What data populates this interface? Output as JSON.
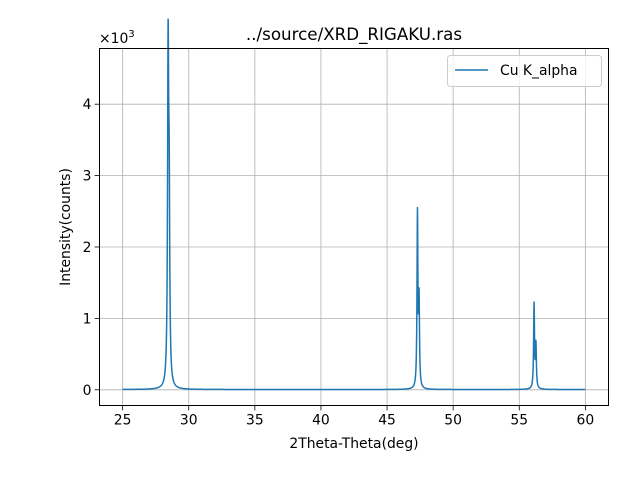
{
  "chart_data": {
    "type": "line",
    "title": "../source/XRD_RIGAKU.ras",
    "xlabel": "2Theta-Theta(deg)",
    "ylabel": "Intensity(counts)",
    "y_offset_label_base": "×10",
    "y_offset_label_exp": "3",
    "y_scale_factor": 1000,
    "xlim": [
      23.25,
      61.75
    ],
    "ylim": [
      -0.22,
      4.78
    ],
    "x_ticks": [
      25,
      30,
      35,
      40,
      45,
      50,
      55,
      60
    ],
    "x_tick_labels": [
      "25",
      "30",
      "35",
      "40",
      "45",
      "50",
      "55",
      "60"
    ],
    "y_ticks": [
      0,
      1,
      2,
      3,
      4
    ],
    "y_tick_labels": [
      "0",
      "1",
      "2",
      "3",
      "4"
    ],
    "grid": true,
    "legend_position": "top-right",
    "series": [
      {
        "name": "Cu K_alpha",
        "color": "#1f77b4",
        "x_range": [
          25,
          60
        ],
        "baseline": 0.004,
        "peaks": [
          {
            "x": 28.44,
            "height": 4.54,
            "width": 0.05
          },
          {
            "x": 28.52,
            "height": 2.3,
            "width": 0.05
          },
          {
            "x": 47.3,
            "height": 2.43,
            "width": 0.04
          },
          {
            "x": 47.42,
            "height": 1.18,
            "width": 0.04
          },
          {
            "x": 56.12,
            "height": 1.18,
            "width": 0.04
          },
          {
            "x": 56.26,
            "height": 0.6,
            "width": 0.04
          }
        ]
      }
    ]
  }
}
